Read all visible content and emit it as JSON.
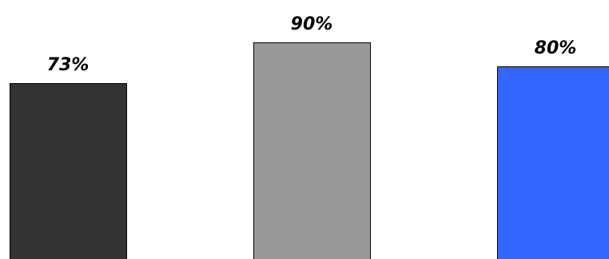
{
  "chart_data": {
    "type": "bar",
    "categories": [
      null,
      null,
      null
    ],
    "values": [
      73,
      90,
      80
    ],
    "value_labels": [
      "73%",
      "90%",
      "80%"
    ],
    "colors": [
      "#333333",
      "#999999",
      "#3366ff"
    ]
  }
}
